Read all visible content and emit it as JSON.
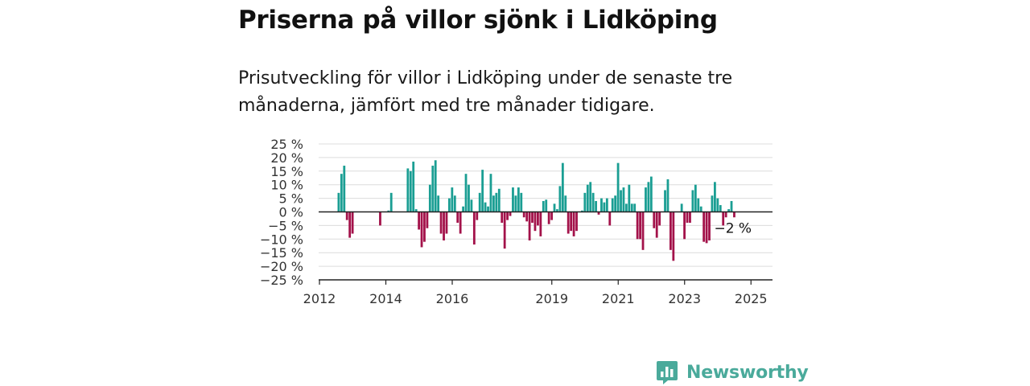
{
  "header": {
    "title": "Priserna på villor sjönk i Lidköping",
    "subtitle": "Prisutveckling för villor i Lidköping under de senaste tre månaderna, jämfört med tre månader tidigare."
  },
  "brand": {
    "name": "Newsworthy",
    "color": "#4aaa9b"
  },
  "chart_data": {
    "type": "bar",
    "title": "Priserna på villor sjönk i Lidköping",
    "subtitle": "Prisutveckling för villor i Lidköping under de senaste tre månaderna, jämfört med tre månader tidigare.",
    "y_unit": "%",
    "ylim": [
      -25,
      25
    ],
    "y_ticks": [
      25,
      20,
      15,
      10,
      5,
      0,
      -5,
      -10,
      -15,
      -20,
      -25
    ],
    "y_tick_labels": [
      "25 %",
      "20 %",
      "15 %",
      "10 %",
      "5 %",
      "0 %",
      "−5 %",
      "−10 %",
      "−15 %",
      "−20 %",
      "−25 %"
    ],
    "x_ticks": [
      "2012",
      "2014",
      "2016",
      "2019",
      "2021",
      "2023",
      "2025"
    ],
    "x_tick_years": [
      2012,
      2014,
      2016,
      2019,
      2021,
      2023,
      2025
    ],
    "x_start": "2012-01",
    "grid": true,
    "positive_color": "#1a9e93",
    "negative_color": "#a3124a",
    "last_value_label": "−2 %",
    "values": [
      7,
      14,
      17,
      -3,
      -9.5,
      -8,
      null,
      null,
      null,
      null,
      null,
      null,
      null,
      null,
      null,
      -5,
      null,
      null,
      0.5,
      7,
      null,
      null,
      null,
      null,
      null,
      16,
      15,
      18.5,
      1,
      -6.5,
      -13,
      -11,
      -6,
      10,
      17,
      19,
      6,
      -8,
      -10.5,
      -8,
      5,
      9,
      6,
      -4,
      -8,
      2,
      14,
      10,
      4.5,
      -12,
      -3,
      7,
      15.5,
      3.5,
      2,
      14,
      6,
      7,
      8.5,
      -4,
      -13.5,
      -3,
      -1.5,
      9,
      6,
      9,
      7,
      -2,
      -3.5,
      -10.5,
      -4,
      -7,
      -5,
      -9,
      4,
      4.5,
      -4.5,
      -3,
      3,
      1,
      9.5,
      18,
      6,
      -8,
      -7,
      -9,
      -7,
      null,
      0.5,
      7,
      10,
      11,
      7,
      4,
      -1,
      5,
      3.5,
      5,
      -5,
      5,
      6,
      18,
      8,
      9,
      3,
      10,
      3,
      3,
      -10,
      -10,
      -14,
      9,
      11,
      13,
      -6,
      -9.5,
      -5,
      null,
      8,
      12,
      -14,
      -18,
      null,
      null,
      3,
      -10,
      -4,
      -4,
      8,
      10,
      5,
      2,
      -11,
      -11.5,
      -10.5,
      6,
      11,
      5,
      2.5,
      -5,
      -2,
      1,
      4,
      -2
    ]
  }
}
